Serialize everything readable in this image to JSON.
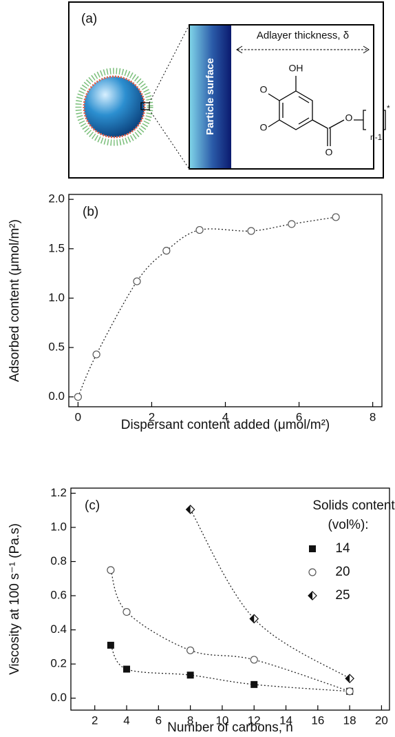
{
  "diagram": {
    "label": "(a)",
    "surface_label": "Particle surface",
    "thickness_label": "Adlayer thickness, δ",
    "atoms": [
      "OH",
      "O",
      "O",
      "O",
      "O"
    ],
    "subscript": "n-1",
    "star": "*"
  },
  "chart_data": [
    {
      "type": "scatter",
      "label": "(b)",
      "x_label": "Dispersant content added (μmol/m²)",
      "y_label": "Adsorbed content (μmol/m²)",
      "x": [
        0,
        0.5,
        1.6,
        2.4,
        3.3,
        4.7,
        5.8,
        7
      ],
      "series": [
        {
          "color": "#555555",
          "marker": "circle",
          "values": [
            0,
            0.43,
            1.17,
            1.48,
            1.69,
            1.68,
            1.75,
            1.82
          ]
        }
      ],
      "xlim": [
        -0.25,
        8.25
      ],
      "ylim": [
        -0.1,
        2.05
      ],
      "xticks": [
        0,
        2,
        4,
        6,
        8
      ],
      "yticks": [
        {
          "value": 0,
          "label": "0.0"
        },
        0.5,
        {
          "value": 1,
          "label": "1.0"
        },
        1.5,
        {
          "value": 2,
          "label": "2.0"
        }
      ]
    },
    {
      "type": "scatter",
      "label": "(c)",
      "x_label": "Number of carbons, n",
      "y_label": "Viscosity at 100 s⁻¹ (Pa.s)",
      "legend_title": [
        "Solids content",
        "(vol%):"
      ],
      "x": [
        3,
        4,
        8,
        12,
        18
      ],
      "series": [
        {
          "name": "14",
          "color": "#111111",
          "marker": "square",
          "values": [
            0.31,
            0.17,
            0.135,
            0.08,
            0.04
          ]
        },
        {
          "name": "20",
          "color": "#555555",
          "marker": "circle",
          "values": [
            0.75,
            0.505,
            0.28,
            0.225,
            0.04
          ]
        },
        {
          "name": "25",
          "color": "#111111",
          "marker": "half-diamond",
          "values": [
            null,
            null,
            1.105,
            0.465,
            0.115
          ]
        }
      ],
      "xlim": [
        0.5,
        20.5
      ],
      "ylim": [
        -0.07,
        1.23
      ],
      "xticks": [
        2,
        4,
        6,
        8,
        10,
        12,
        14,
        16,
        18,
        20
      ],
      "yticks": [
        {
          "value": 0,
          "label": "0.0"
        },
        0.2,
        0.4,
        0.6,
        0.8,
        {
          "value": 1,
          "label": "1.0"
        },
        1.2
      ]
    }
  ]
}
